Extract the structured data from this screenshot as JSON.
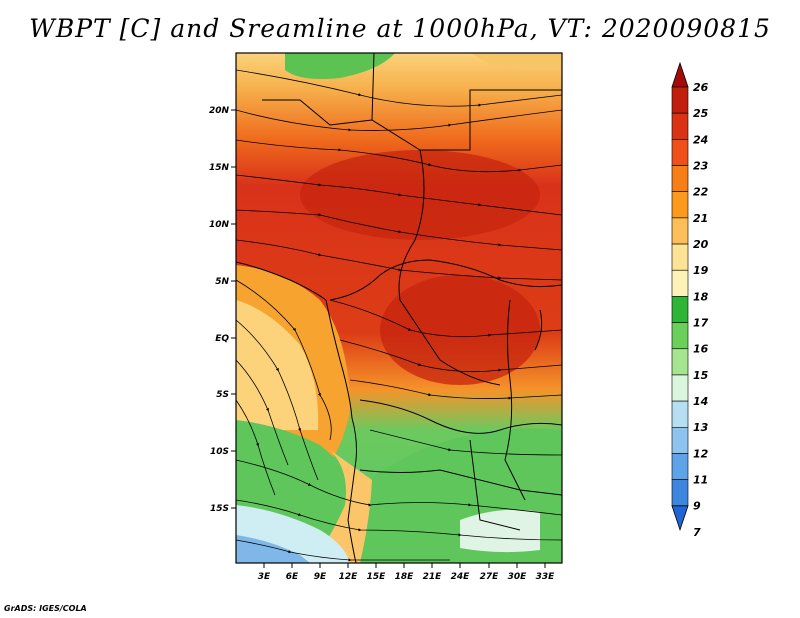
{
  "title": "WBPT [C] and Sreamline at 1000hPa, VT: 2020090815",
  "credit": "GrADS: IGES/COLA",
  "lat_labels": [
    "20N",
    "15N",
    "10N",
    "5N",
    "EQ",
    "5S",
    "10S",
    "15S"
  ],
  "lon_labels": [
    "3E",
    "6E",
    "9E",
    "12E",
    "15E",
    "18E",
    "21E",
    "24E",
    "27E",
    "30E",
    "33E"
  ],
  "colorbar": {
    "labels": [
      "26",
      "25",
      "24",
      "23",
      "22",
      "21",
      "20",
      "19",
      "18",
      "17",
      "16",
      "15",
      "14",
      "13",
      "12",
      "11",
      "9",
      "7"
    ],
    "colors": [
      "#a50a0a",
      "#c21e0d",
      "#d93314",
      "#ef501a",
      "#f57f16",
      "#fb9a1c",
      "#fbbe58",
      "#fde396",
      "#fdf3b8",
      "#2fb535",
      "#6ad05a",
      "#a5e58f",
      "#dcf6dd",
      "#b7dff2",
      "#8ec3ef",
      "#5da3e8",
      "#3d85df",
      "#1f66d4"
    ]
  }
}
